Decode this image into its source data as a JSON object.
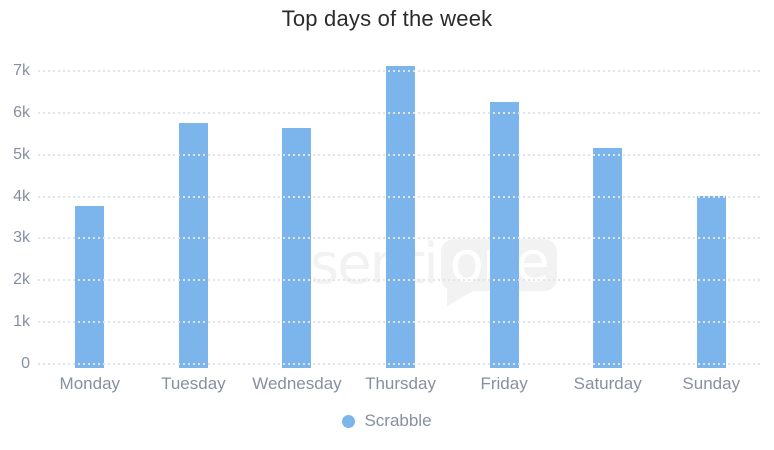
{
  "title": "Top days of the week",
  "chart_data": {
    "type": "bar",
    "title": "Top days of the week",
    "categories": [
      "Monday",
      "Tuesday",
      "Wednesday",
      "Thursday",
      "Friday",
      "Saturday",
      "Sunday"
    ],
    "series": [
      {
        "name": "Scrabble",
        "values": [
          3880,
          5860,
          5730,
          7220,
          6350,
          5260,
          4110
        ]
      }
    ],
    "xlabel": "",
    "ylabel": "",
    "y_ticks": [
      "0",
      "1k",
      "2k",
      "3k",
      "4k",
      "5k",
      "6k",
      "7k"
    ],
    "ylim": [
      0,
      7500
    ],
    "grid": "horizontal-dotted",
    "legend_position": "bottom-center",
    "bar_color": "#7cb5ec"
  },
  "legend": {
    "label": "Scrabble",
    "marker_color": "#7cb5ec"
  },
  "watermark": {
    "left": "senti",
    "bubble": "one"
  },
  "colors": {
    "bar": "#7cb5ec",
    "axis_label": "#8590a0",
    "title": "#2b2b2b",
    "gridline": "#e1e4e9",
    "watermark": "#f2f2f2"
  }
}
